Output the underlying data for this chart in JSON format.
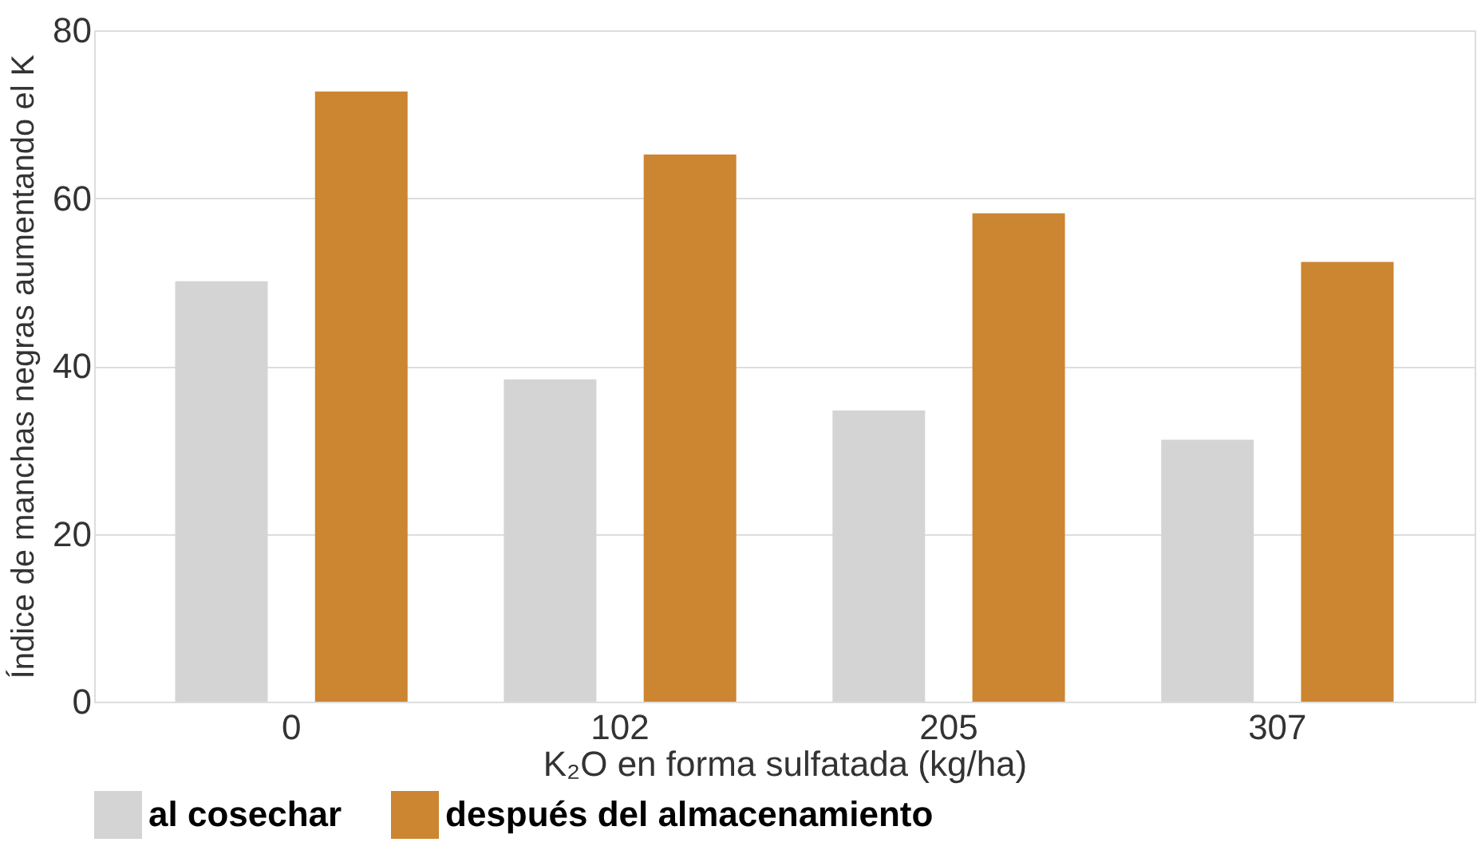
{
  "chart_data": {
    "type": "bar",
    "xlabel": "K₂O en forma sulfatada (kg/ha)",
    "ylabel": "Índice de manchas negras aumentando el K",
    "categories": [
      "0",
      "102",
      "205",
      "307"
    ],
    "series": [
      {
        "name": "al cosechar",
        "color": "#d4d4d4",
        "values": [
          50.1,
          38.4,
          34.7,
          31.2
        ]
      },
      {
        "name": "después del almacenamiento",
        "color": "#cc8530",
        "values": [
          72.7,
          65.2,
          58.2,
          52.4
        ]
      }
    ],
    "ylim": [
      0,
      80
    ],
    "yticks": [
      0,
      20,
      40,
      60,
      80
    ],
    "grid": "y",
    "legend": "bottom"
  }
}
